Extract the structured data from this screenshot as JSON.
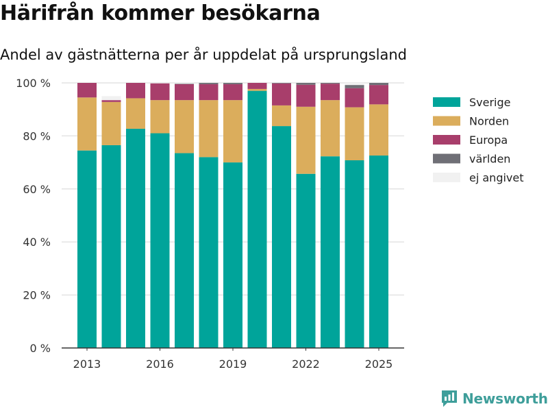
{
  "title": "Härifrån kommer besökarna",
  "subtitle": "Andel av gästnätterna per år uppdelat på ursprungsland",
  "brand": "Newsworthy",
  "chart_data": {
    "type": "bar",
    "stacked": true,
    "x": [
      2013,
      2014,
      2015,
      2016,
      2017,
      2018,
      2019,
      2020,
      2021,
      2022,
      2023,
      2024,
      2025
    ],
    "x_ticks": [
      "2013",
      "2016",
      "2019",
      "2022",
      "2025"
    ],
    "y_ticks": [
      "0 %",
      "20 %",
      "40 %",
      "60 %",
      "80 %",
      "100 %"
    ],
    "ylim": [
      0,
      100
    ],
    "grid": true,
    "legend_position": "right",
    "series": [
      {
        "name": "Sverige",
        "color": "#00a49a",
        "values": [
          74.5,
          76.5,
          82.7,
          81.0,
          73.5,
          72.0,
          70.0,
          97.0,
          83.7,
          65.7,
          72.3,
          70.8,
          72.6
        ]
      },
      {
        "name": "Norden",
        "color": "#dbad5c",
        "values": [
          20.0,
          16.3,
          11.5,
          12.5,
          20.0,
          21.5,
          23.5,
          0.7,
          7.8,
          25.3,
          21.2,
          20.0,
          19.3
        ]
      },
      {
        "name": "Europa",
        "color": "#a83e6b",
        "values": [
          5.5,
          0.7,
          5.8,
          6.3,
          6.0,
          6.0,
          6.0,
          2.3,
          8.3,
          8.3,
          6.2,
          7.2,
          7.3
        ]
      },
      {
        "name": "världen",
        "color": "#6f6f76",
        "values": [
          0,
          0,
          0,
          0,
          0.2,
          0.5,
          0.5,
          0,
          0.2,
          0.7,
          0.3,
          1.2,
          0.8
        ]
      },
      {
        "name": "ej angivet",
        "color": "#f1f1f1",
        "values": [
          0,
          1.5,
          0,
          0,
          0.3,
          0,
          0,
          0,
          0,
          0,
          0,
          0.8,
          0
        ]
      }
    ]
  }
}
